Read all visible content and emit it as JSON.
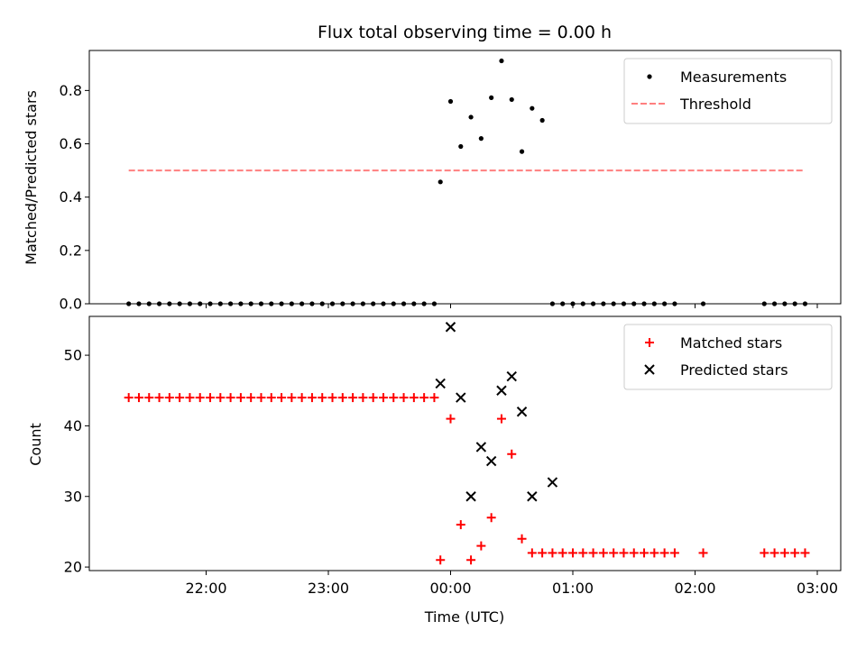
{
  "chart_data": [
    {
      "type": "scatter",
      "title": "Flux total observing time = 0.00 h",
      "xlabel": "",
      "ylabel": "Matched/Predicted stars",
      "ylim": [
        0,
        0.95
      ],
      "yticks": [
        "0.0",
        "0.2",
        "0.4",
        "0.6",
        "0.8"
      ],
      "ytick_values": [
        0,
        0.2,
        0.4,
        0.6,
        0.8
      ],
      "legend": "top-right",
      "series": [
        {
          "name": "Measurements",
          "color": "#000000",
          "marker": "dot",
          "x": [
            "21:22",
            "21:27",
            "21:32",
            "21:37",
            "21:42",
            "21:47",
            "21:52",
            "21:57",
            "22:02",
            "22:07",
            "22:12",
            "22:17",
            "22:22",
            "22:27",
            "22:32",
            "22:37",
            "22:42",
            "22:47",
            "22:52",
            "22:57",
            "23:02",
            "23:07",
            "23:12",
            "23:17",
            "23:22",
            "23:27",
            "23:32",
            "23:37",
            "23:42",
            "23:47",
            "23:52",
            "23:55",
            "00:00",
            "00:05",
            "00:10",
            "00:15",
            "00:20",
            "00:25",
            "00:30",
            "00:35",
            "00:40",
            "00:45",
            "00:50",
            "00:55",
            "01:00",
            "01:05",
            "01:10",
            "01:15",
            "01:20",
            "01:25",
            "01:30",
            "01:35",
            "01:40",
            "01:45",
            "01:50",
            "02:04",
            "02:34",
            "02:39",
            "02:44",
            "02:49",
            "02:54"
          ],
          "y": [
            0,
            0,
            0,
            0,
            0,
            0,
            0,
            0,
            0,
            0,
            0,
            0,
            0,
            0,
            0,
            0,
            0,
            0,
            0,
            0,
            0,
            0,
            0,
            0,
            0,
            0,
            0,
            0,
            0,
            0,
            0,
            0.457,
            0.759,
            0.59,
            0.7,
            0.62,
            0.773,
            0.911,
            0.766,
            0.571,
            0.733,
            0.688,
            0,
            0,
            0,
            0,
            0,
            0,
            0,
            0,
            0,
            0,
            0,
            0,
            0,
            0,
            0,
            0,
            0,
            0,
            0
          ]
        },
        {
          "name": "Threshold",
          "color": "#ff7f7f",
          "style": "dashed",
          "x": [
            "21:22",
            "02:54"
          ],
          "y": [
            0.5,
            0.5
          ]
        }
      ]
    },
    {
      "type": "scatter",
      "title": "",
      "xlabel": "Time (UTC)",
      "ylabel": "Count",
      "ylim": [
        19.5,
        55.5
      ],
      "yticks": [
        "20",
        "30",
        "40",
        "50"
      ],
      "ytick_values": [
        20,
        30,
        40,
        50
      ],
      "xticks": [
        "22:00",
        "23:00",
        "00:00",
        "01:00",
        "02:00",
        "03:00"
      ],
      "legend": "top-right",
      "series": [
        {
          "name": "Matched stars",
          "color": "#ff0000",
          "marker": "plus",
          "x": [
            "21:22",
            "21:27",
            "21:32",
            "21:37",
            "21:42",
            "21:47",
            "21:52",
            "21:57",
            "22:02",
            "22:07",
            "22:12",
            "22:17",
            "22:22",
            "22:27",
            "22:32",
            "22:37",
            "22:42",
            "22:47",
            "22:52",
            "22:57",
            "23:02",
            "23:07",
            "23:12",
            "23:17",
            "23:22",
            "23:27",
            "23:32",
            "23:37",
            "23:42",
            "23:47",
            "23:52",
            "23:55",
            "00:00",
            "00:05",
            "00:10",
            "00:15",
            "00:20",
            "00:25",
            "00:30",
            "00:35",
            "00:40",
            "00:45",
            "00:50",
            "00:55",
            "01:00",
            "01:05",
            "01:10",
            "01:15",
            "01:20",
            "01:25",
            "01:30",
            "01:35",
            "01:40",
            "01:45",
            "01:50",
            "02:04",
            "02:34",
            "02:39",
            "02:44",
            "02:49",
            "02:54"
          ],
          "y": [
            44,
            44,
            44,
            44,
            44,
            44,
            44,
            44,
            44,
            44,
            44,
            44,
            44,
            44,
            44,
            44,
            44,
            44,
            44,
            44,
            44,
            44,
            44,
            44,
            44,
            44,
            44,
            44,
            44,
            44,
            44,
            21,
            41,
            26,
            21,
            23,
            27,
            41,
            36,
            24,
            22,
            22,
            22,
            22,
            22,
            22,
            22,
            22,
            22,
            22,
            22,
            22,
            22,
            22,
            22,
            22,
            22,
            22,
            22,
            22,
            22
          ]
        },
        {
          "name": "Predicted stars",
          "color": "#000000",
          "marker": "x",
          "x": [
            "23:55",
            "00:00",
            "00:05",
            "00:10",
            "00:15",
            "00:20",
            "00:25",
            "00:30",
            "00:35",
            "00:40",
            "00:50"
          ],
          "y": [
            46,
            54,
            44,
            30,
            37,
            35,
            45,
            47,
            42,
            30,
            32
          ]
        }
      ]
    }
  ]
}
